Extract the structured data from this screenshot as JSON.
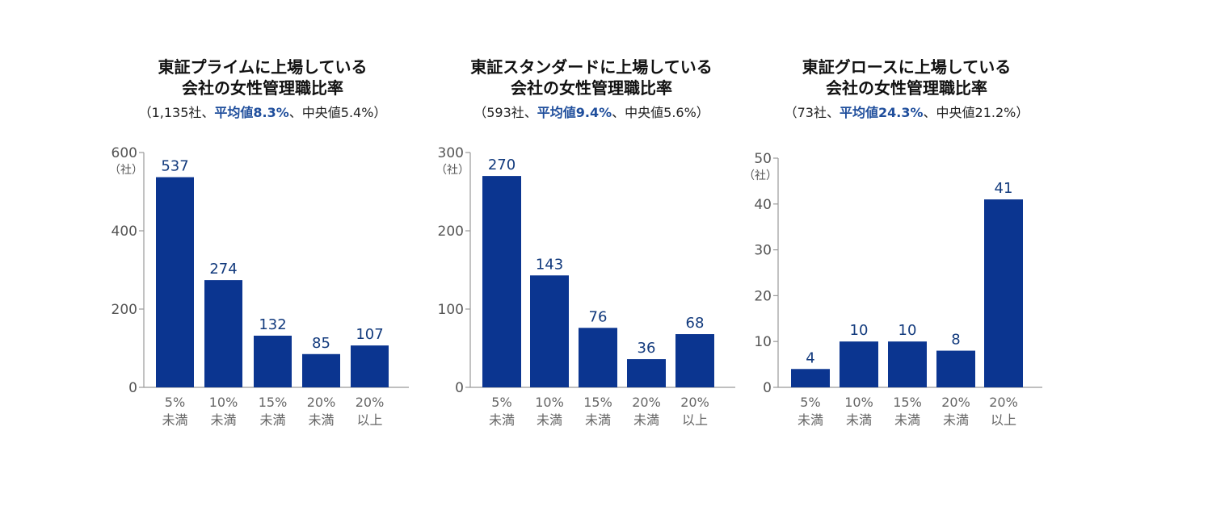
{
  "colors": {
    "bar": "#0b3590",
    "axis": "#999999",
    "highlight": "#1f4e9c"
  },
  "chart_data": [
    {
      "type": "bar",
      "title": [
        "東証プライムに上場している",
        "会社の女性管理職比率"
      ],
      "subtitle": {
        "pre": "（1,135社、",
        "highlight": "平均値8.3%",
        "post": "、中央値5.4%）"
      },
      "ylabel": "（社）",
      "ylim": [
        0,
        600
      ],
      "yticks": [
        "600",
        "400",
        "200",
        "0"
      ],
      "ytick_values": [
        600,
        400,
        200,
        0
      ],
      "categories": [
        [
          "5%",
          "未満"
        ],
        [
          "10%",
          "未満"
        ],
        [
          "15%",
          "未満"
        ],
        [
          "20%",
          "未満"
        ],
        [
          "20%",
          "以上"
        ]
      ],
      "values": [
        537,
        274,
        132,
        85,
        107
      ],
      "value_labels": [
        "537",
        "274",
        "132",
        "85",
        "107"
      ]
    },
    {
      "type": "bar",
      "title": [
        "東証スタンダードに上場している",
        "会社の女性管理職比率"
      ],
      "subtitle": {
        "pre": "（593社、",
        "highlight": "平均値9.4%",
        "post": "、中央値5.6%）"
      },
      "ylabel": "（社）",
      "ylim": [
        0,
        300
      ],
      "yticks": [
        "300",
        "200",
        "100",
        "0"
      ],
      "ytick_values": [
        300,
        200,
        100,
        0
      ],
      "categories": [
        [
          "5%",
          "未満"
        ],
        [
          "10%",
          "未満"
        ],
        [
          "15%",
          "未満"
        ],
        [
          "20%",
          "未満"
        ],
        [
          "20%",
          "以上"
        ]
      ],
      "values": [
        270,
        143,
        76,
        36,
        68
      ],
      "value_labels": [
        "270",
        "143",
        "76",
        "36",
        "68"
      ]
    },
    {
      "type": "bar",
      "title": [
        "東証グロースに上場している",
        "会社の女性管理職比率"
      ],
      "subtitle": {
        "pre": "（73社、",
        "highlight": "平均値24.3%",
        "post": "、中央値21.2%）"
      },
      "ylabel": "（社）",
      "ylim": [
        0,
        50
      ],
      "yticks": [
        "50",
        "40",
        "30",
        "20",
        "10",
        "0"
      ],
      "ytick_values": [
        50,
        40,
        30,
        20,
        10,
        0
      ],
      "categories": [
        [
          "5%",
          "未満"
        ],
        [
          "10%",
          "未満"
        ],
        [
          "15%",
          "未満"
        ],
        [
          "20%",
          "未満"
        ],
        [
          "20%",
          "以上"
        ]
      ],
      "values": [
        4,
        10,
        10,
        8,
        41
      ],
      "value_labels": [
        "4",
        "10",
        "10",
        "8",
        "41"
      ]
    }
  ]
}
